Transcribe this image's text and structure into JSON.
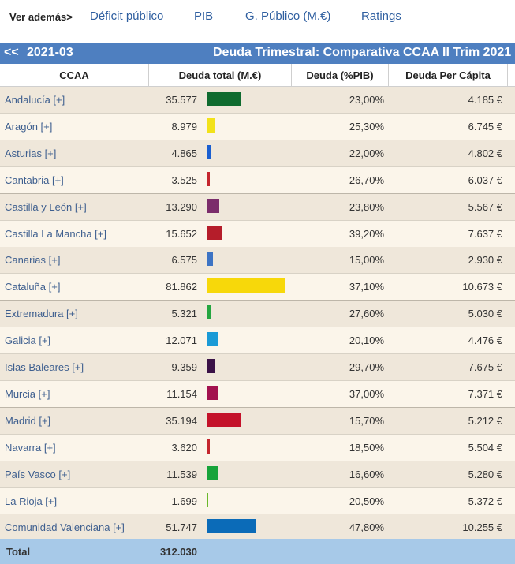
{
  "nav": {
    "label": "Ver además>",
    "links": [
      "Déficit público",
      "PIB",
      "G. Público (M.€)",
      "Ratings"
    ]
  },
  "header": {
    "prev": "<<",
    "period": "2021-03",
    "title": "Deuda Trimestral: Comparativa CCAA II Trim 2021"
  },
  "columns": [
    "CCAA",
    "Deuda total (M.€)",
    "Deuda (%PIB)",
    "Deuda Per Cápita"
  ],
  "rows": [
    {
      "name": "Andalucía [+]",
      "total": "35.577",
      "value": 35577,
      "color": "#0f6b2f",
      "pct": "23,00%",
      "pc": "4.185 €"
    },
    {
      "name": "Aragón [+]",
      "total": "8.979",
      "value": 8979,
      "color": "#f2e21a",
      "pct": "25,30%",
      "pc": "6.745 €"
    },
    {
      "name": "Asturias [+]",
      "total": "4.865",
      "value": 4865,
      "color": "#1a5fd0",
      "pct": "22,00%",
      "pc": "4.802 €"
    },
    {
      "name": "Cantabria [+]",
      "total": "3.525",
      "value": 3525,
      "color": "#c4262e",
      "pct": "26,70%",
      "pc": "6.037 €"
    },
    {
      "name": "Castilla y León [+]",
      "total": "13.290",
      "value": 13290,
      "color": "#7b2d6b",
      "pct": "23,80%",
      "pc": "5.567 €"
    },
    {
      "name": "Castilla La Mancha [+]",
      "total": "15.652",
      "value": 15652,
      "color": "#b51d2a",
      "pct": "39,20%",
      "pc": "7.637 €"
    },
    {
      "name": "Canarias [+]",
      "total": "6.575",
      "value": 6575,
      "color": "#3d74c4",
      "pct": "15,00%",
      "pc": "2.930 €"
    },
    {
      "name": "Cataluña [+]",
      "total": "81.862",
      "value": 81862,
      "color": "#f7d80a",
      "pct": "37,10%",
      "pc": "10.673 €"
    },
    {
      "name": "Extremadura [+]",
      "total": "5.321",
      "value": 5321,
      "color": "#25a640",
      "pct": "27,60%",
      "pc": "5.030 €"
    },
    {
      "name": "Galicia [+]",
      "total": "12.071",
      "value": 12071,
      "color": "#1a9ad6",
      "pct": "20,10%",
      "pc": "4.476 €"
    },
    {
      "name": "Islas Baleares [+]",
      "total": "9.359",
      "value": 9359,
      "color": "#3b1247",
      "pct": "29,70%",
      "pc": "7.675 €"
    },
    {
      "name": "Murcia [+]",
      "total": "11.154",
      "value": 11154,
      "color": "#a3124f",
      "pct": "37,00%",
      "pc": "7.371 €"
    },
    {
      "name": "Madrid [+]",
      "total": "35.194",
      "value": 35194,
      "color": "#c4122a",
      "pct": "15,70%",
      "pc": "5.212 €"
    },
    {
      "name": "Navarra [+]",
      "total": "3.620",
      "value": 3620,
      "color": "#c4262e",
      "pct": "18,50%",
      "pc": "5.504 €"
    },
    {
      "name": "País Vasco [+]",
      "total": "11.539",
      "value": 11539,
      "color": "#17a33a",
      "pct": "16,60%",
      "pc": "5.280 €"
    },
    {
      "name": "La Rioja [+]",
      "total": "1.699",
      "value": 1699,
      "color": "#6bb82c",
      "pct": "20,50%",
      "pc": "5.372 €"
    },
    {
      "name": "Comunidad Valenciana [+]",
      "total": "51.747",
      "value": 51747,
      "color": "#0b6bb8",
      "pct": "47,80%",
      "pc": "10.255 €"
    }
  ],
  "total": {
    "label": "Total",
    "value": "312.030"
  }
}
